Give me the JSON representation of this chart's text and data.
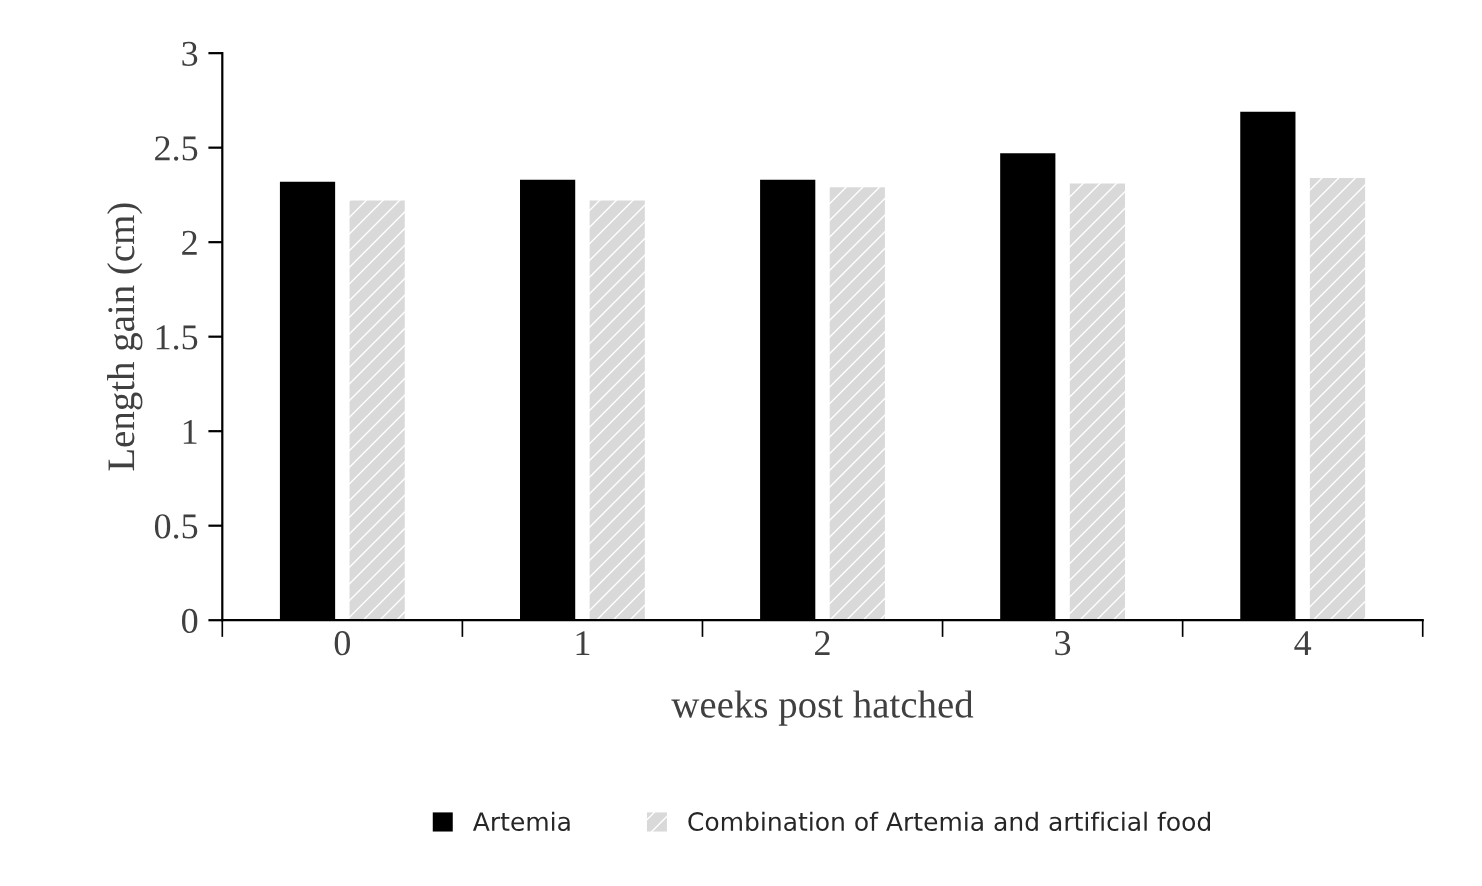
{
  "chart_data": {
    "type": "bar",
    "xlabel": "weeks post hatched",
    "ylabel": "Length gain (cm)",
    "categories": [
      "0",
      "1",
      "2",
      "3",
      "4"
    ],
    "series": [
      {
        "name": "Artemia",
        "color": "#000000",
        "values": [
          2.32,
          2.33,
          2.33,
          2.47,
          2.69
        ]
      },
      {
        "name": "Combination of Artemia and artificial food",
        "color": "#d9d9d9",
        "values": [
          2.22,
          2.22,
          2.29,
          2.31,
          2.34
        ]
      }
    ],
    "ylim": [
      0,
      3
    ],
    "yticks": [
      0,
      0.5,
      1,
      1.5,
      2,
      2.5,
      3
    ],
    "grid": false,
    "legend": "bottom"
  }
}
